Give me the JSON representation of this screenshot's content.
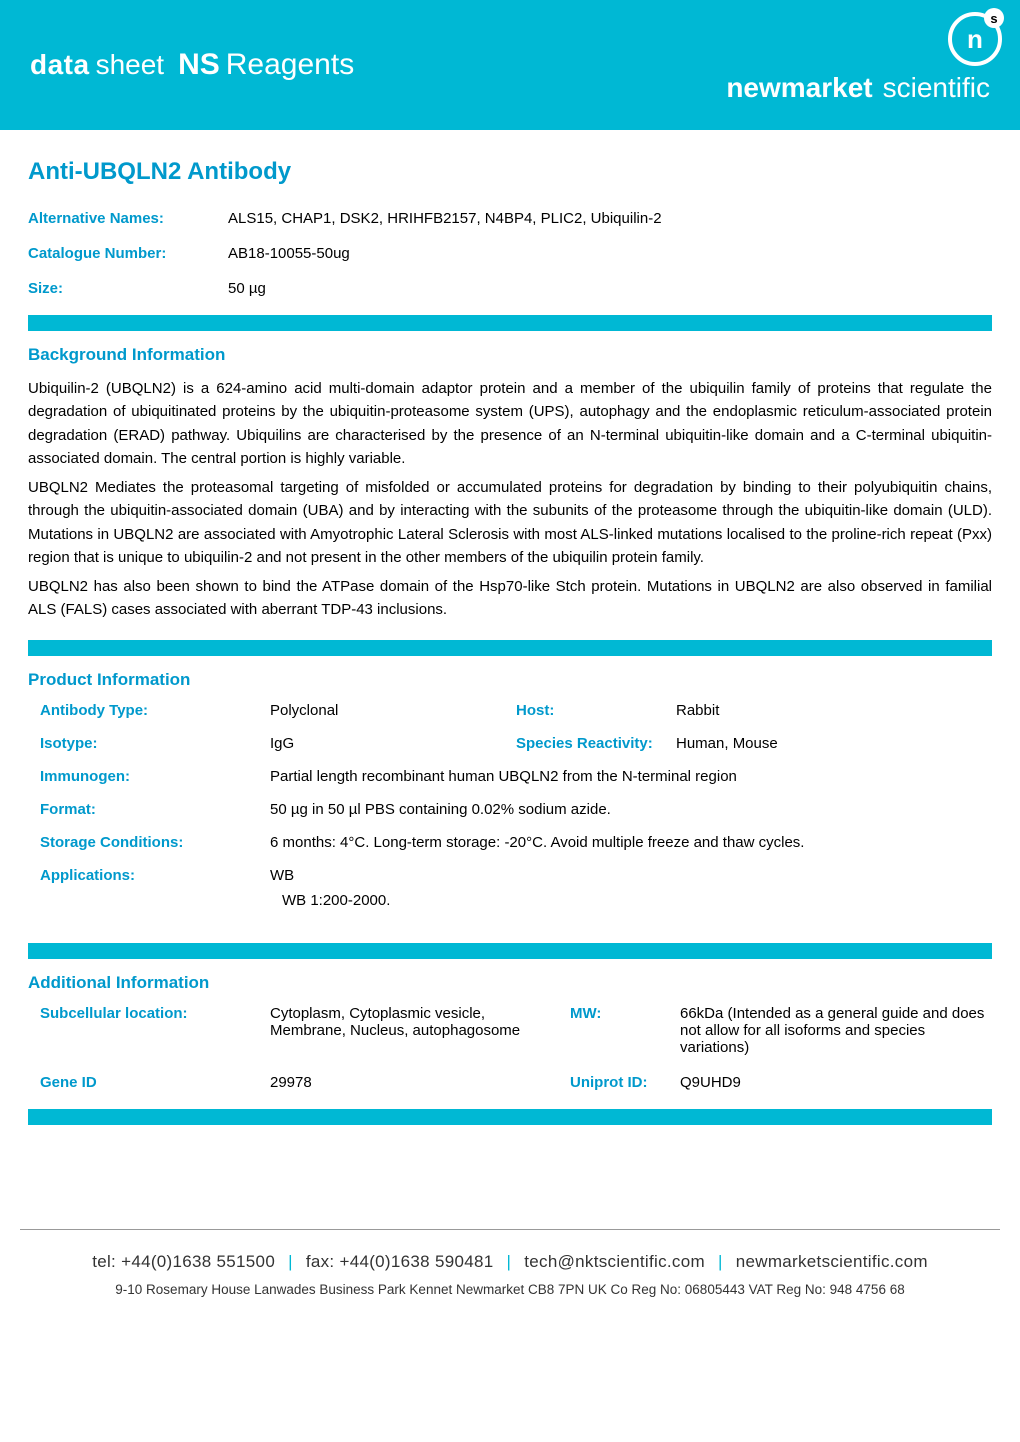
{
  "colors": {
    "accent": "#00b8d4",
    "heading": "#0099cc",
    "text": "#000000",
    "footer_text": "#333333",
    "rule": "#999999",
    "white": "#ffffff"
  },
  "banner": {
    "left": {
      "p1": "data",
      "p2": "sheet",
      "p3": "NS",
      "p4": "Reagents"
    },
    "right": {
      "p1": "newmarket",
      "p2": "scientific"
    },
    "logo_letter": "n"
  },
  "title": "Anti-UBQLN2 Antibody",
  "top_rows": [
    {
      "label": "Alternative Names:",
      "value": "ALS15, CHAP1, DSK2, HRIHFB2157, N4BP4, PLIC2, Ubiquilin-2"
    },
    {
      "label": "Catalogue Number:",
      "value": "AB18-10055-50ug"
    },
    {
      "label": "Size:",
      "value": "50 µg"
    }
  ],
  "background": {
    "heading": "Background Information",
    "p1": "Ubiquilin-2 (UBQLN2) is a 624-amino acid multi-domain adaptor protein and a member of the ubiquilin family of proteins that regulate the degradation of ubiquitinated proteins by the ubiquitin-proteasome system (UPS), autophagy and the endoplasmic reticulum-associated protein degradation (ERAD) pathway. Ubiquilins are characterised by the presence of an N-terminal ubiquitin-like domain and a C-terminal ubiquitin-associated domain. The central  portion is highly variable.",
    "p2": "UBQLN2 Mediates the proteasomal targeting of misfolded or accumulated proteins for degradation by binding to their polyubiquitin chains, through the ubiquitin-associated domain (UBA) and by interacting with the subunits of the proteasome through the ubiquitin-like domain (ULD). Mutations in UBQLN2 are associated with Amyotrophic Lateral Sclerosis with most ALS-linked mutations localised to the proline-rich repeat (Pxx) region that is unique to ubiquilin-2 and not present in the other members of the ubiquilin protein family.",
    "p3": "UBQLN2 has also been shown to bind the ATPase domain of the Hsp70-like Stch protein. Mutations in UBQLN2 are also observed in familial ALS (FALS) cases associated with aberrant TDP-43 inclusions."
  },
  "product": {
    "heading": "Product Information",
    "antibody_type": {
      "label": "Antibody Type:",
      "value": "Polyclonal"
    },
    "host": {
      "label": "Host:",
      "value": "Rabbit"
    },
    "isotype": {
      "label": "Isotype:",
      "value": "IgG"
    },
    "species": {
      "label": "Species Reactivity:",
      "value": "Human, Mouse"
    },
    "immunogen": {
      "label": "Immunogen:",
      "value": "Partial length recombinant human UBQLN2 from the N-terminal region"
    },
    "format": {
      "label": "Format:",
      "value": "50 µg in 50 µl PBS containing 0.02% sodium azide."
    },
    "storage": {
      "label": "Storage Conditions:",
      "value": "6 months: 4°C. Long-term storage: -20°C. Avoid multiple freeze and thaw cycles."
    },
    "applications": {
      "label": "Applications:",
      "value": "WB",
      "extra": "WB 1:200-2000."
    }
  },
  "additional": {
    "heading": "Additional Information",
    "subcellular": {
      "label": "Subcellular location:",
      "value": "Cytoplasm, Cytoplasmic vesicle, Membrane, Nucleus, autophagosome"
    },
    "mw": {
      "label": "MW:",
      "value": "66kDa (Intended as a general guide and does not allow for all isoforms and species variations)"
    },
    "gene_id": {
      "label": "Gene ID",
      "value": "29978"
    },
    "uniprot": {
      "label": "Uniprot ID:",
      "value": "Q9UHD9"
    }
  },
  "footer": {
    "tel": "tel: +44(0)1638 551500",
    "fax": "fax: +44(0)1638 590481",
    "email": "tech@nktscientific.com",
    "web": "newmarketscientific.com",
    "address": "9-10 Rosemary House  Lanwades Business Park  Kennet  Newmarket  CB8 7PN  UK  Co Reg No:  06805443  VAT Reg No: 948 4756 68"
  }
}
